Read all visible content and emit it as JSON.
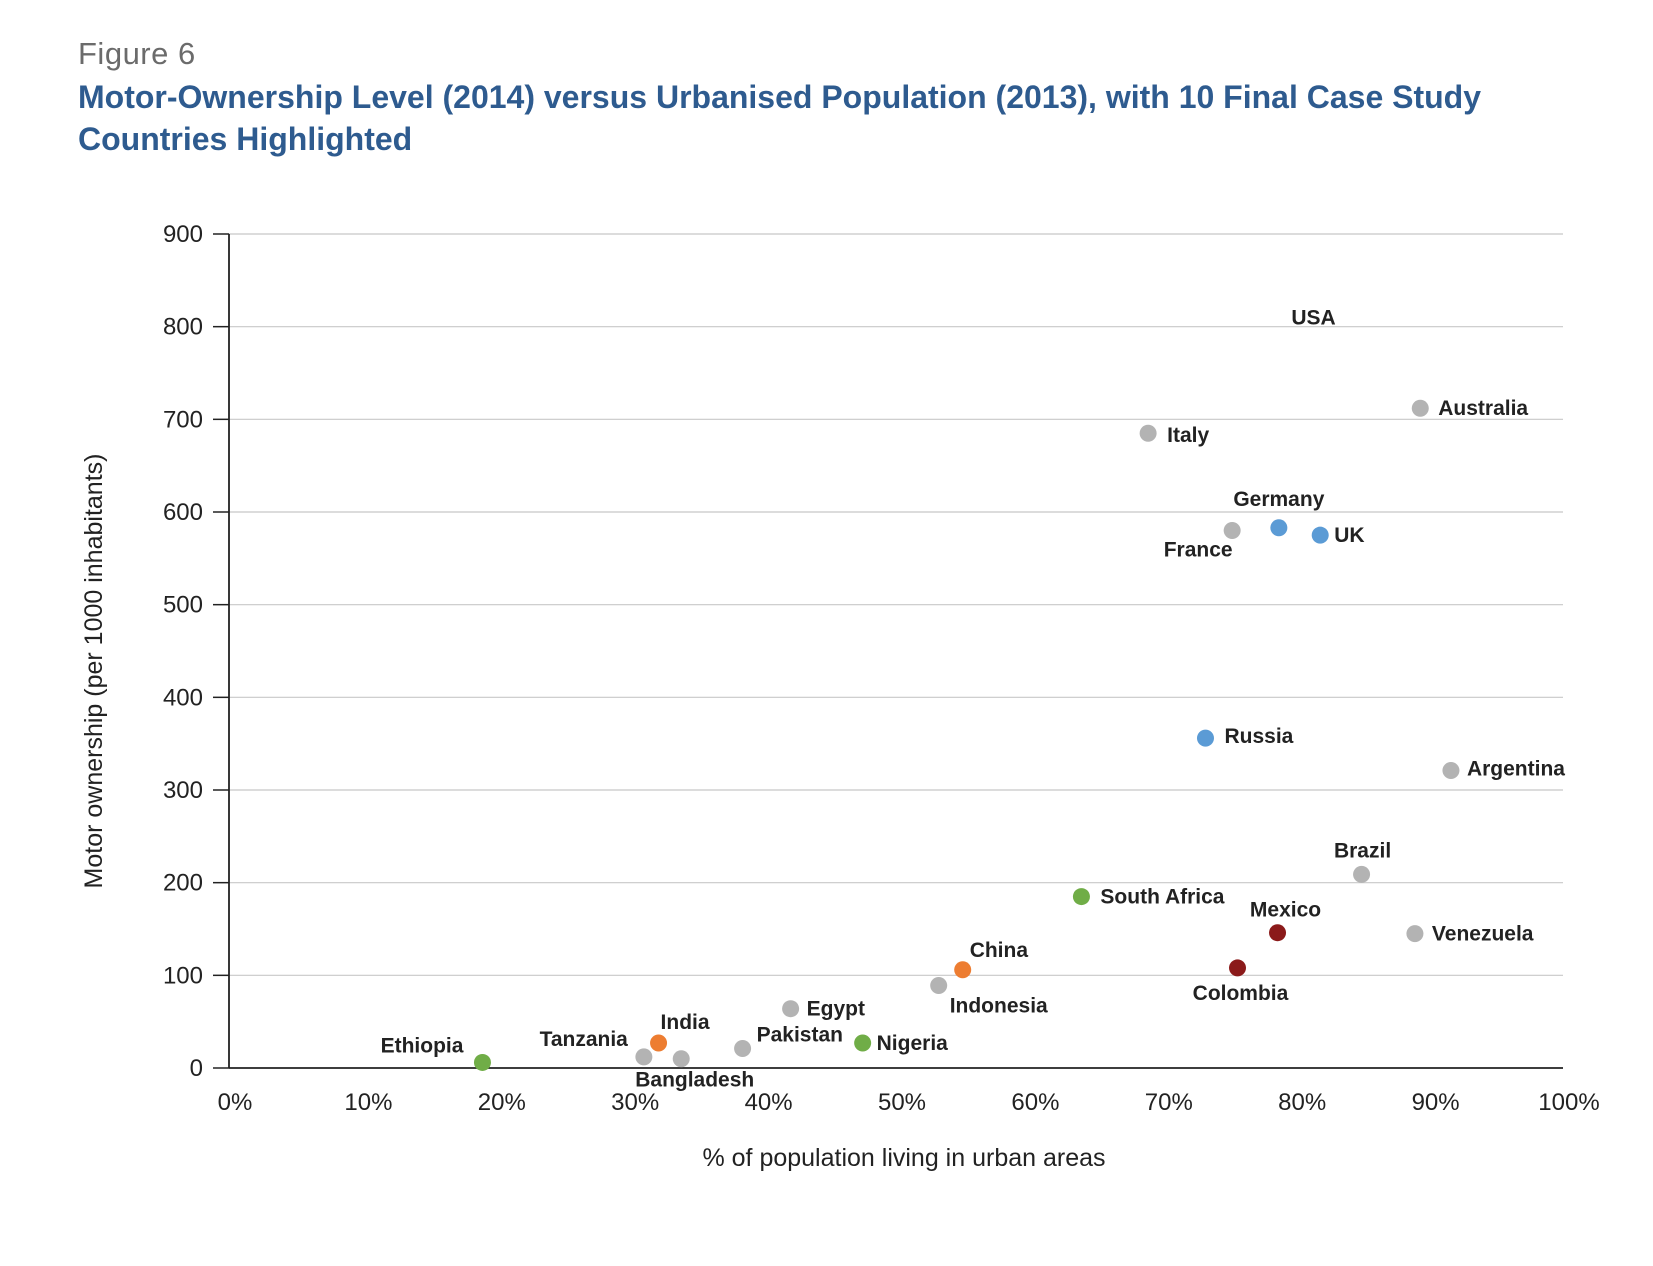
{
  "figure_label": "Figure 6",
  "title": "Motor-Ownership Level (2014) versus Urbanised Population (2013), with 10 Final Case Study Countries Highlighted",
  "colors": {
    "grey": "#b3b3b3",
    "blue": "#5b9bd5",
    "green": "#70ad47",
    "orange": "#ed7d31",
    "darkred": "#8b1a1a",
    "title": "#2e5b8f"
  },
  "chart_data": {
    "type": "scatter",
    "xlabel": "% of population living in urban areas",
    "ylabel": "Motor ownership (per 1000 inhabitants)",
    "xlim": [
      0,
      100
    ],
    "ylim": [
      0,
      900
    ],
    "x_ticks": [
      "0%",
      "10%",
      "20%",
      "30%",
      "40%",
      "50%",
      "60%",
      "70%",
      "80%",
      "90%",
      "100%"
    ],
    "y_ticks": [
      "0",
      "100",
      "200",
      "300",
      "400",
      "500",
      "600",
      "700",
      "800",
      "900"
    ],
    "grid": "horizontal",
    "points": [
      {
        "name": "USA",
        "x": 81.3,
        "y": 800,
        "color": "grey",
        "dot": false
      },
      {
        "name": "Australia",
        "x": 89.3,
        "y": 712,
        "color": "grey",
        "dot": true
      },
      {
        "name": "Italy",
        "x": 68.9,
        "y": 685,
        "color": "grey",
        "dot": true
      },
      {
        "name": "Germany",
        "x": 78.7,
        "y": 583,
        "color": "blue",
        "dot": true
      },
      {
        "name": "UK",
        "x": 81.8,
        "y": 575,
        "color": "blue",
        "dot": true
      },
      {
        "name": "France",
        "x": 75.2,
        "y": 580,
        "color": "grey",
        "dot": true
      },
      {
        "name": "Russia",
        "x": 73.2,
        "y": 356,
        "color": "blue",
        "dot": true
      },
      {
        "name": "Argentina",
        "x": 91.6,
        "y": 321,
        "color": "grey",
        "dot": true
      },
      {
        "name": "Brazil",
        "x": 84.9,
        "y": 209,
        "color": "grey",
        "dot": true
      },
      {
        "name": "South Africa",
        "x": 63.9,
        "y": 185,
        "color": "green",
        "dot": true
      },
      {
        "name": "Mexico",
        "x": 78.6,
        "y": 146,
        "color": "darkred",
        "dot": true
      },
      {
        "name": "Venezuela",
        "x": 88.9,
        "y": 145,
        "color": "grey",
        "dot": true
      },
      {
        "name": "China",
        "x": 55.0,
        "y": 106,
        "color": "orange",
        "dot": true
      },
      {
        "name": "Colombia",
        "x": 75.6,
        "y": 108,
        "color": "darkred",
        "dot": true
      },
      {
        "name": "Indonesia",
        "x": 53.2,
        "y": 89,
        "color": "grey",
        "dot": true
      },
      {
        "name": "Egypt",
        "x": 42.1,
        "y": 64,
        "color": "grey",
        "dot": true
      },
      {
        "name": "Nigeria",
        "x": 47.5,
        "y": 27,
        "color": "green",
        "dot": true
      },
      {
        "name": "India",
        "x": 32.2,
        "y": 27,
        "color": "orange",
        "dot": true
      },
      {
        "name": "Pakistan",
        "x": 38.5,
        "y": 21,
        "color": "grey",
        "dot": true
      },
      {
        "name": "Tanzania",
        "x": 31.1,
        "y": 12,
        "color": "grey",
        "dot": true
      },
      {
        "name": "Bangladesh",
        "x": 33.9,
        "y": 10,
        "color": "grey",
        "dot": true
      },
      {
        "name": "Ethiopia",
        "x": 19.0,
        "y": 6,
        "color": "green",
        "dot": true
      }
    ]
  }
}
